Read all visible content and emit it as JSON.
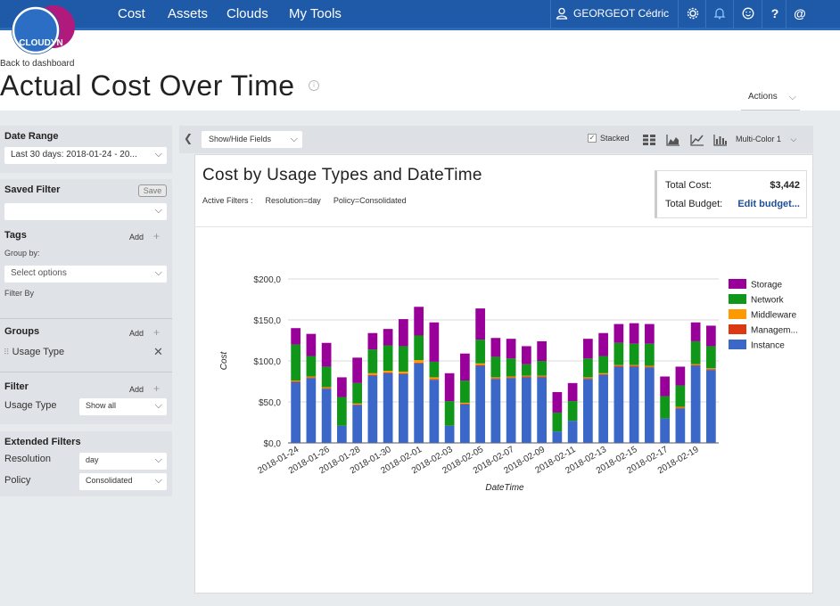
{
  "nav": {
    "items": [
      "Cost",
      "Assets",
      "Clouds",
      "My Tools"
    ],
    "user_name": "GEORGEOT Cédric",
    "icons": [
      "settings-icon",
      "bell-icon",
      "smiley-icon",
      "help-icon",
      "at-icon"
    ]
  },
  "logo": {
    "text": "CLOUDYN"
  },
  "header": {
    "back_link": "Back to dashboard",
    "title": "Actual Cost Over Time",
    "actions_label": "Actions"
  },
  "sidebar": {
    "date_range": {
      "title": "Date Range",
      "value": "Last 30 days:  2018-01-24 - 20..."
    },
    "saved_filter": {
      "title": "Saved Filter",
      "save_label": "Save",
      "value": ""
    },
    "tags": {
      "title": "Tags",
      "add_label": "Add",
      "group_by_label": "Group by:",
      "select_placeholder": "Select options",
      "filter_by_label": "Filter By"
    },
    "groups": {
      "title": "Groups",
      "add_label": "Add",
      "item": "Usage Type"
    },
    "filter": {
      "title": "Filter",
      "add_label": "Add",
      "field": "Usage Type",
      "value": "Show all"
    },
    "extended": {
      "title": "Extended Filters",
      "resolution_label": "Resolution",
      "resolution_value": "day",
      "policy_label": "Policy",
      "policy_value": "Consolidated"
    }
  },
  "toolbar": {
    "show_hide": "Show/Hide Fields",
    "stacked_label": "Stacked",
    "stacked_checked": true,
    "color_scheme": "Multi-Color 1"
  },
  "card": {
    "title": "Cost by Usage Types and DateTime",
    "active_filters_label": "Active Filters :",
    "filters": [
      "Resolution=day",
      "Policy=Consolidated"
    ],
    "total_cost_label": "Total Cost:",
    "total_cost_value": "$3,442",
    "total_budget_label": "Total Budget:",
    "edit_budget_label": "Edit budget..."
  },
  "chart_data": {
    "type": "bar",
    "stacked": true,
    "xlabel": "DateTime",
    "ylabel": "Cost",
    "ylim": [
      0,
      200
    ],
    "y_ticks": [
      "$0,0",
      "$50,0",
      "$100,0",
      "$150,0",
      "$200,0"
    ],
    "x_tick_labels": [
      "2018-01-24",
      "2018-01-26",
      "2018-01-28",
      "2018-01-30",
      "2018-02-01",
      "2018-02-03",
      "2018-02-05",
      "2018-02-07",
      "2018-02-09",
      "2018-02-11",
      "2018-02-13",
      "2018-02-15",
      "2018-02-17",
      "2018-02-19"
    ],
    "categories": [
      "2018-01-24",
      "2018-01-25",
      "2018-01-26",
      "2018-01-27",
      "2018-01-28",
      "2018-01-29",
      "2018-01-30",
      "2018-01-31",
      "2018-02-01",
      "2018-02-02",
      "2018-02-03",
      "2018-02-04",
      "2018-02-05",
      "2018-02-06",
      "2018-02-07",
      "2018-02-08",
      "2018-02-09",
      "2018-02-10",
      "2018-02-11",
      "2018-02-12",
      "2018-02-13",
      "2018-02-14",
      "2018-02-15",
      "2018-02-16",
      "2018-02-17",
      "2018-02-18",
      "2018-02-19",
      "2018-02-20"
    ],
    "series": [
      {
        "name": "Instance",
        "color": "#3a67c8",
        "values": [
          74,
          79,
          66,
          21,
          46,
          82,
          85,
          84,
          97,
          77,
          21,
          47,
          94,
          78,
          79,
          80,
          80,
          14,
          27,
          78,
          83,
          93,
          93,
          92,
          30,
          42,
          94,
          89
        ]
      },
      {
        "name": "Managem...",
        "color": "#dc3912",
        "values": [
          1,
          1,
          1,
          0,
          1,
          1,
          1,
          1,
          1,
          1,
          0,
          1,
          1,
          1,
          1,
          1,
          1,
          0,
          0,
          1,
          1,
          1,
          1,
          1,
          0,
          1,
          1,
          1
        ]
      },
      {
        "name": "Middleware",
        "color": "#ff9900",
        "values": [
          1,
          1,
          1,
          0,
          1,
          2,
          2,
          2,
          3,
          2,
          0,
          1,
          2,
          1,
          1,
          1,
          1,
          0,
          0,
          1,
          1,
          1,
          1,
          1,
          0,
          1,
          1,
          1
        ]
      },
      {
        "name": "Network",
        "color": "#109618",
        "values": [
          44,
          25,
          25,
          35,
          25,
          29,
          31,
          31,
          30,
          19,
          30,
          27,
          29,
          25,
          22,
          14,
          18,
          23,
          24,
          23,
          21,
          27,
          26,
          27,
          27,
          26,
          28,
          27
        ]
      },
      {
        "name": "Storage",
        "color": "#990099",
        "values": [
          20,
          27,
          29,
          24,
          31,
          20,
          20,
          33,
          35,
          48,
          34,
          33,
          38,
          23,
          24,
          22,
          24,
          25,
          22,
          24,
          28,
          23,
          25,
          24,
          24,
          23,
          23,
          25
        ]
      }
    ],
    "legend_position": "right",
    "grid": true
  }
}
